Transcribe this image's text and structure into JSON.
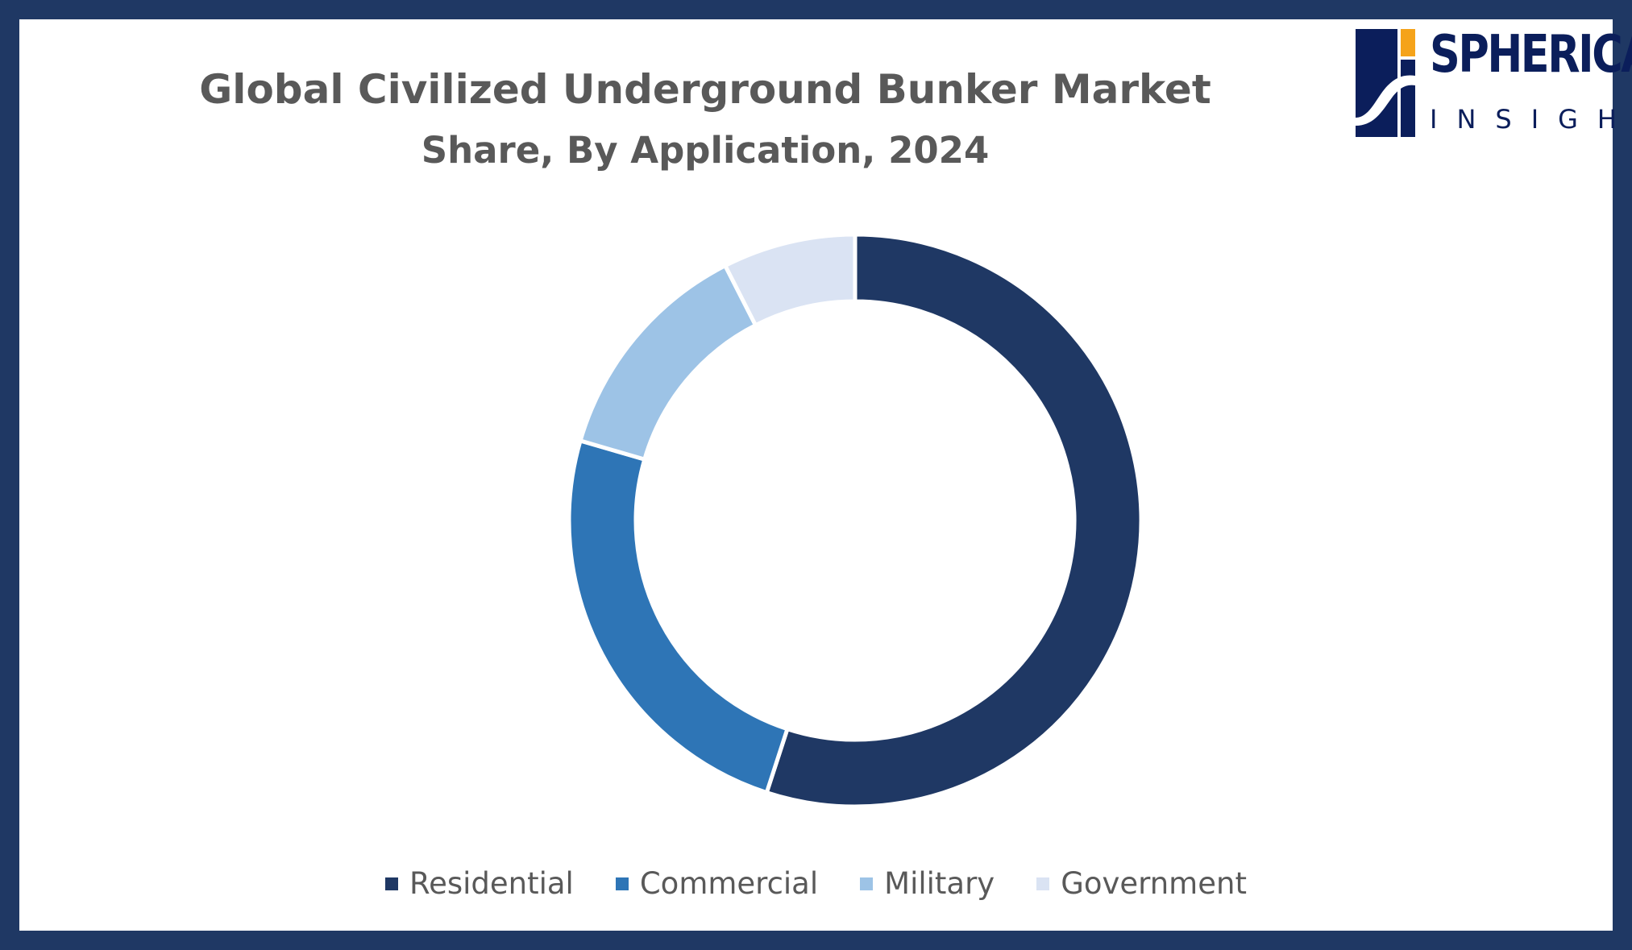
{
  "header": {
    "title": "Global Civilized Underground Bunker Market",
    "subtitle": "Share, By Application, 2024"
  },
  "logo": {
    "word1": "SPHERICAL",
    "word2": "INSIGHTS",
    "colors": {
      "navy": "#0b1e5b",
      "orange": "#f5a31a"
    }
  },
  "chart_data": {
    "type": "pie",
    "variant": "donut",
    "title": "Global Civilized Underground Bunker Market",
    "subtitle": "Share, By Application, 2024",
    "categories": [
      "Residential",
      "Commercial",
      "Military",
      "Government"
    ],
    "values": [
      55.0,
      24.5,
      13.0,
      7.5
    ],
    "unit": "%",
    "colors": [
      "#1f3864",
      "#2e75b6",
      "#9dc3e6",
      "#dae3f3"
    ],
    "legend_position": "bottom",
    "start_angle_deg": 0,
    "direction": "clockwise"
  },
  "legend": {
    "items": [
      {
        "label": "Residential",
        "color": "#1f3864"
      },
      {
        "label": "Commercial",
        "color": "#2e75b6"
      },
      {
        "label": "Military",
        "color": "#9dc3e6"
      },
      {
        "label": "Government",
        "color": "#dae3f3"
      }
    ]
  },
  "colors": {
    "border": "#1f3864",
    "background": "#ffffff",
    "text": "#595959"
  }
}
